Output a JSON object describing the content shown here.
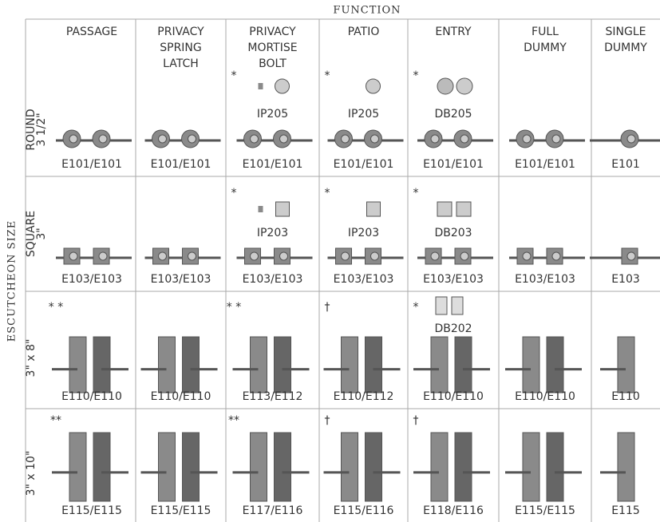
{
  "header": {
    "title": "FUNCTION",
    "side_title": "ESCUTCHEON SIZE"
  },
  "columns": [
    [
      "PASSAGE"
    ],
    [
      "PRIVACY",
      "SPRING",
      "LATCH"
    ],
    [
      "PRIVACY",
      "MORTISE",
      "BOLT"
    ],
    [
      "PATIO"
    ],
    [
      "ENTRY"
    ],
    [
      "FULL",
      "DUMMY"
    ],
    [
      "SINGLE",
      "DUMMY"
    ]
  ],
  "rows": [
    {
      "label": [
        "ROUND",
        "3 1/2\""
      ],
      "cells": [
        {
          "code": "E101/E101"
        },
        {
          "code": "E101/E101"
        },
        {
          "mark": "*",
          "trim": "IP205",
          "code": "E101/E101"
        },
        {
          "mark": "*",
          "trim": "IP205",
          "code": "E101/E101"
        },
        {
          "mark": "*",
          "trim": "DB205",
          "code": "E101/E101"
        },
        {
          "code": "E101/E101"
        },
        {
          "code": "E101"
        }
      ]
    },
    {
      "label": [
        "SQUARE",
        "3\""
      ],
      "cells": [
        {
          "code": "E103/E103"
        },
        {
          "code": "E103/E103"
        },
        {
          "mark": "*",
          "trim": "IP203",
          "code": "E103/E103"
        },
        {
          "mark": "*",
          "trim": "IP203",
          "code": "E103/E103"
        },
        {
          "mark": "*",
          "trim": "DB203",
          "code": "E103/E103"
        },
        {
          "code": "E103/E103"
        },
        {
          "code": "E103"
        }
      ]
    },
    {
      "label": [
        "3\" x 8\""
      ],
      "cells": [
        {
          "mark": "* *",
          "code": "E110/E110"
        },
        {
          "code": "E110/E110"
        },
        {
          "mark": "* *",
          "code": "E113/E112"
        },
        {
          "mark": "†",
          "code": "E110/E112"
        },
        {
          "mark": "*",
          "trim": "DB202",
          "code": "E110/E110"
        },
        {
          "code": "E110/E110"
        },
        {
          "code": "E110"
        }
      ]
    },
    {
      "label": [
        "3\" x 10\""
      ],
      "cells": [
        {
          "mark": "**",
          "code": "E115/E115"
        },
        {
          "code": "E115/E115"
        },
        {
          "mark": "**",
          "code": "E117/E116"
        },
        {
          "mark": "†",
          "code": "E115/E116"
        },
        {
          "mark": "†",
          "code": "E118/E116"
        },
        {
          "code": "E115/E115"
        },
        {
          "code": "E115"
        }
      ]
    }
  ]
}
